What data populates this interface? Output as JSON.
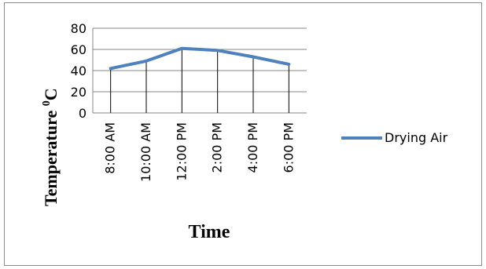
{
  "chart_data": {
    "type": "line",
    "title": "",
    "xlabel": "Time",
    "ylabel_main": "Temperature ",
    "ylabel_sup": "0",
    "ylabel_tail": "C",
    "categories": [
      "8:00 AM",
      "10:00 AM",
      "12:00 PM",
      "2:00 PM",
      "4:00 PM",
      "6:00 PM"
    ],
    "series": [
      {
        "name": "Drying Air",
        "values": [
          42,
          49,
          61,
          59,
          53,
          46
        ],
        "color": "#4f81bd"
      }
    ],
    "ylim": [
      0,
      80
    ],
    "yticks": [
      0,
      20,
      40,
      60,
      80
    ],
    "grid": true,
    "legend_position": "right",
    "drop_lines": true
  }
}
